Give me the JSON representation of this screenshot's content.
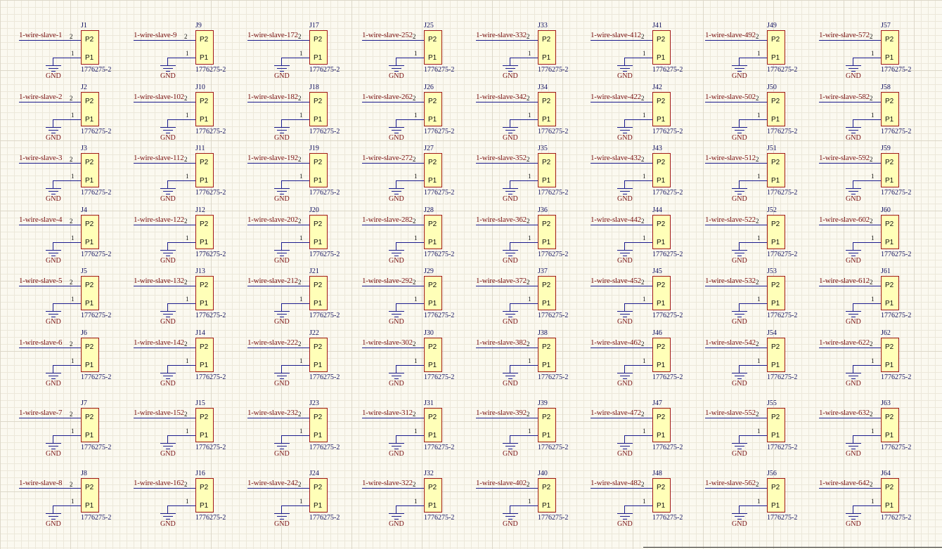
{
  "part_number": "1776275-2",
  "pin_labels": {
    "pin2": "P2",
    "pin1": "P1"
  },
  "pin_numbers": {
    "pin2": "2",
    "pin1": "1"
  },
  "ground_label": "GND",
  "colors": {
    "background": "#fbf9f0",
    "component_fill": "#ffffb8",
    "component_border": "#a11818",
    "wire": "#1a1a8c",
    "net_label": "#7a1212",
    "designator": "#101060"
  },
  "rows": [
    [
      {
        "designator": "J1",
        "net": "1-wire-slave-1"
      },
      {
        "designator": "J9",
        "net": "1-wire-slave-9"
      },
      {
        "designator": "J17",
        "net": "1-wire-slave-172"
      },
      {
        "designator": "J25",
        "net": "1-wire-slave-252"
      },
      {
        "designator": "J33",
        "net": "1-wire-slave-332"
      },
      {
        "designator": "J41",
        "net": "1-wire-slave-412"
      },
      {
        "designator": "J49",
        "net": "1-wire-slave-492"
      },
      {
        "designator": "J57",
        "net": "1-wire-slave-572"
      }
    ],
    [
      {
        "designator": "J2",
        "net": "1-wire-slave-2"
      },
      {
        "designator": "J10",
        "net": "1-wire-slave-102"
      },
      {
        "designator": "J18",
        "net": "1-wire-slave-182"
      },
      {
        "designator": "J26",
        "net": "1-wire-slave-262"
      },
      {
        "designator": "J34",
        "net": "1-wire-slave-342"
      },
      {
        "designator": "J42",
        "net": "1-wire-slave-422"
      },
      {
        "designator": "J50",
        "net": "1-wire-slave-502"
      },
      {
        "designator": "J58",
        "net": "1-wire-slave-582"
      }
    ],
    [
      {
        "designator": "J3",
        "net": "1-wire-slave-3"
      },
      {
        "designator": "J11",
        "net": "1-wire-slave-112"
      },
      {
        "designator": "J19",
        "net": "1-wire-slave-192"
      },
      {
        "designator": "J27",
        "net": "1-wire-slave-272"
      },
      {
        "designator": "J35",
        "net": "1-wire-slave-352"
      },
      {
        "designator": "J43",
        "net": "1-wire-slave-432"
      },
      {
        "designator": "J51",
        "net": "1-wire-slave-512"
      },
      {
        "designator": "J59",
        "net": "1-wire-slave-592"
      }
    ],
    [
      {
        "designator": "J4",
        "net": "1-wire-slave-4"
      },
      {
        "designator": "J12",
        "net": "1-wire-slave-122"
      },
      {
        "designator": "J20",
        "net": "1-wire-slave-202"
      },
      {
        "designator": "J28",
        "net": "1-wire-slave-282"
      },
      {
        "designator": "J36",
        "net": "1-wire-slave-362"
      },
      {
        "designator": "J44",
        "net": "1-wire-slave-442"
      },
      {
        "designator": "J52",
        "net": "1-wire-slave-522"
      },
      {
        "designator": "J60",
        "net": "1-wire-slave-602"
      }
    ],
    [
      {
        "designator": "J5",
        "net": "1-wire-slave-5"
      },
      {
        "designator": "J13",
        "net": "1-wire-slave-132"
      },
      {
        "designator": "J21",
        "net": "1-wire-slave-212"
      },
      {
        "designator": "J29",
        "net": "1-wire-slave-292"
      },
      {
        "designator": "J37",
        "net": "1-wire-slave-372"
      },
      {
        "designator": "J45",
        "net": "1-wire-slave-452"
      },
      {
        "designator": "J53",
        "net": "1-wire-slave-532"
      },
      {
        "designator": "J61",
        "net": "1-wire-slave-612"
      }
    ],
    [
      {
        "designator": "J6",
        "net": "1-wire-slave-6"
      },
      {
        "designator": "J14",
        "net": "1-wire-slave-142"
      },
      {
        "designator": "J22",
        "net": "1-wire-slave-222"
      },
      {
        "designator": "J30",
        "net": "1-wire-slave-302"
      },
      {
        "designator": "J38",
        "net": "1-wire-slave-382"
      },
      {
        "designator": "J46",
        "net": "1-wire-slave-462"
      },
      {
        "designator": "J54",
        "net": "1-wire-slave-542"
      },
      {
        "designator": "J62",
        "net": "1-wire-slave-622"
      }
    ],
    [
      {
        "designator": "J7",
        "net": "1-wire-slave-7"
      },
      {
        "designator": "J15",
        "net": "1-wire-slave-152"
      },
      {
        "designator": "J23",
        "net": "1-wire-slave-232"
      },
      {
        "designator": "J31",
        "net": "1-wire-slave-312"
      },
      {
        "designator": "J39",
        "net": "1-wire-slave-392"
      },
      {
        "designator": "J47",
        "net": "1-wire-slave-472"
      },
      {
        "designator": "J55",
        "net": "1-wire-slave-552"
      },
      {
        "designator": "J63",
        "net": "1-wire-slave-632"
      }
    ],
    [
      {
        "designator": "J8",
        "net": "1-wire-slave-8"
      },
      {
        "designator": "J16",
        "net": "1-wire-slave-162"
      },
      {
        "designator": "J24",
        "net": "1-wire-slave-242"
      },
      {
        "designator": "J32",
        "net": "1-wire-slave-322"
      },
      {
        "designator": "J40",
        "net": "1-wire-slave-402"
      },
      {
        "designator": "J48",
        "net": "1-wire-slave-482"
      },
      {
        "designator": "J56",
        "net": "1-wire-slave-562"
      },
      {
        "designator": "J64",
        "net": "1-wire-slave-642"
      }
    ]
  ]
}
